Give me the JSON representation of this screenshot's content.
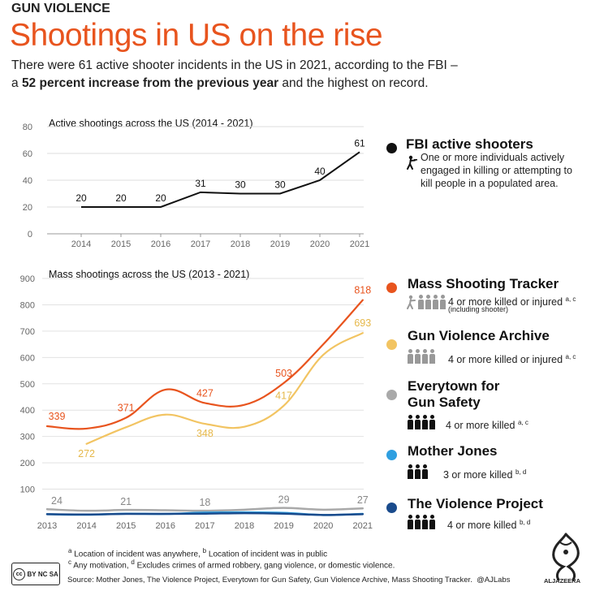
{
  "header": {
    "kicker": "GUN VIOLENCE",
    "title": "Shootings in US on the rise",
    "subtitle_part1": "There were 61 active shooter incidents in the US in 2021, according to the FBI –",
    "subtitle_part2_prefix": "a ",
    "subtitle_bold": "52 percent increase from the previous year",
    "subtitle_part2_suffix": " and the highest on record."
  },
  "chart_data": [
    {
      "type": "line",
      "title": "Active shootings across the US (2014 - 2021)",
      "x": [
        2014,
        2015,
        2016,
        2017,
        2018,
        2019,
        2020,
        2021
      ],
      "ylim": [
        0,
        80
      ],
      "yticks": [
        0,
        20,
        40,
        60,
        80
      ],
      "series": [
        {
          "name": "FBI active shooters",
          "values": [
            20,
            20,
            20,
            31,
            30,
            30,
            40,
            61
          ],
          "color": "#111111"
        }
      ]
    },
    {
      "type": "line",
      "title": "Mass shootings across the US (2013 - 2021)",
      "x": [
        2013,
        2014,
        2015,
        2016,
        2017,
        2018,
        2019,
        2020,
        2021
      ],
      "ylim": [
        0,
        900
      ],
      "yticks": [
        100,
        200,
        300,
        400,
        500,
        600,
        700,
        800,
        900
      ],
      "series": [
        {
          "name": "Mass Shooting Tracker",
          "x": [
            2013,
            2014,
            2015,
            2016,
            2017,
            2018,
            2019,
            2020,
            2021
          ],
          "values": [
            339,
            330,
            371,
            478,
            427,
            420,
            503,
            650,
            818
          ],
          "labeled": [
            339,
            null,
            371,
            null,
            427,
            null,
            503,
            null,
            818
          ],
          "color": "#e8541e"
        },
        {
          "name": "Gun Violence Archive",
          "x": [
            2014,
            2015,
            2016,
            2017,
            2018,
            2019,
            2020,
            2021
          ],
          "values": [
            272,
            335,
            383,
            348,
            337,
            417,
            610,
            693
          ],
          "labeled": [
            272,
            null,
            null,
            348,
            null,
            417,
            null,
            693
          ],
          "color": "#f2c462"
        },
        {
          "name": "Everytown for Gun Safety",
          "x": [
            2013,
            2014,
            2015,
            2016,
            2017,
            2018,
            2019,
            2020,
            2021
          ],
          "values": [
            24,
            18,
            21,
            20,
            18,
            22,
            29,
            22,
            27
          ],
          "labeled": [
            24,
            null,
            21,
            null,
            18,
            null,
            29,
            null,
            27
          ],
          "color": "#a9a9a9"
        },
        {
          "name": "Mother Jones",
          "x": [
            2013,
            2014,
            2015,
            2016,
            2017,
            2018,
            2019,
            2020,
            2021
          ],
          "values": [
            5,
            3,
            7,
            6,
            11,
            12,
            10,
            2,
            6
          ],
          "color": "#2f9fe0"
        },
        {
          "name": "The Violence Project",
          "x": [
            2013,
            2014,
            2015,
            2016,
            2017,
            2018,
            2019,
            2020,
            2021
          ],
          "values": [
            5,
            4,
            6,
            6,
            7,
            9,
            7,
            2,
            5
          ],
          "color": "#1a4b8c"
        }
      ]
    }
  ],
  "legend": {
    "fbi": {
      "title": "FBI active shooters",
      "desc": "One or more individuals actively engaged in killing or attempting to kill people in a populated area.",
      "color": "#111111"
    },
    "mst": {
      "title": "Mass Shooting Tracker",
      "desc": "4 or more killed or injured",
      "sup": "a, c",
      "note": "(including shooter)",
      "color": "#e8541e"
    },
    "gva": {
      "title": "Gun Violence Archive",
      "desc": "4 or more killed or injured",
      "sup": "a, c",
      "color": "#f2c462"
    },
    "ets": {
      "title_line1": "Everytown for",
      "title_line2": "Gun Safety",
      "desc": "4 or more killed",
      "sup": "a, c",
      "color": "#a9a9a9"
    },
    "mj": {
      "title": "Mother Jones",
      "desc": "3 or more killed",
      "sup": "b, d",
      "color": "#2f9fe0"
    },
    "tvp": {
      "title": "The Violence Project",
      "desc": "4 or more killed",
      "sup": "b, d",
      "color": "#1a4b8c"
    }
  },
  "footnotes": {
    "a_sup": "a",
    "a": " Location of incident was anywhere, ",
    "b_sup": "b",
    "b": " Location of incident was in public",
    "c_sup": "c",
    "c": " Any motivation, ",
    "d_sup": "d",
    "d": " Excludes crimes of armed robbery, gang violence, or domestic violence."
  },
  "source": "Source: Mother Jones, The Violence Project, Everytown for Gun Safety, Gun Violence Archive, Mass Shooting Tracker.",
  "credit": "@AJLabs",
  "license": {
    "cc": "cc",
    "by": "BY",
    "nc": "NC",
    "sa": "SA"
  },
  "brand": "ALJAZEERA"
}
